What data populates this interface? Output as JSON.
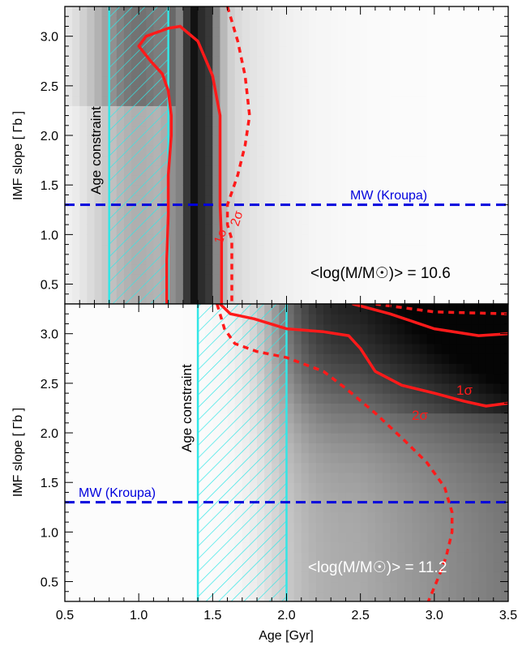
{
  "chart_data": [
    {
      "type": "heatmap",
      "panel": "top",
      "xlabel": "",
      "ylabel": "IMF slope [ Γb ]",
      "xlim": [
        0.5,
        3.5
      ],
      "ylim": [
        0.3,
        3.3
      ],
      "x_ticks": [
        "0.5",
        "1.0",
        "1.5",
        "2.0",
        "2.5",
        "3.0",
        "3.5"
      ],
      "y_ticks": [
        "0.5",
        "1.0",
        "1.5",
        "2.0",
        "2.5",
        "3.0"
      ],
      "age_constraint": {
        "label": "Age constraint",
        "x": [
          0.8,
          1.2
        ]
      },
      "mw_line": {
        "label": "MW (Kroupa)",
        "y": 1.3
      },
      "mass_label": "<log(M/M☉)> = 10.6",
      "contours": [
        {
          "label": "1σ",
          "style": "solid",
          "points": [
            [
              1.28,
              3.1
            ],
            [
              1.2,
              3.08
            ],
            [
              1.05,
              3.0
            ],
            [
              1.0,
              2.9
            ],
            [
              1.08,
              2.75
            ],
            [
              1.16,
              2.62
            ],
            [
              1.2,
              2.45
            ],
            [
              1.22,
              2.2
            ],
            [
              1.22,
              2.0
            ],
            [
              1.2,
              1.6
            ],
            [
              1.2,
              1.2
            ],
            [
              1.19,
              0.75
            ],
            [
              1.19,
              0.3
            ]
          ],
          "points_b": [
            [
              1.28,
              3.1
            ],
            [
              1.4,
              2.95
            ],
            [
              1.5,
              2.6
            ],
            [
              1.55,
              2.2
            ],
            [
              1.55,
              1.9
            ],
            [
              1.55,
              1.3
            ],
            [
              1.56,
              0.95
            ],
            [
              1.56,
              0.3
            ]
          ]
        },
        {
          "label": "2σ",
          "style": "dashed",
          "points": [
            [
              1.6,
              3.3
            ],
            [
              1.67,
              2.95
            ],
            [
              1.72,
              2.6
            ],
            [
              1.75,
              2.2
            ],
            [
              1.72,
              1.9
            ],
            [
              1.67,
              1.6
            ],
            [
              1.6,
              1.3
            ],
            [
              1.6,
              1.1
            ],
            [
              1.63,
              0.95
            ],
            [
              1.63,
              0.3
            ]
          ]
        }
      ]
    },
    {
      "type": "heatmap",
      "panel": "bottom",
      "xlabel": "Age [Gyr]",
      "ylabel": "IMF slope [ Γb ]",
      "xlim": [
        0.5,
        3.5
      ],
      "ylim": [
        0.3,
        3.3
      ],
      "x_ticks": [
        "0.5",
        "1.0",
        "1.5",
        "2.0",
        "2.5",
        "3.0",
        "3.5"
      ],
      "y_ticks": [
        "0.5",
        "1.0",
        "1.5",
        "2.0",
        "2.5",
        "3.0"
      ],
      "age_constraint": {
        "label": "Age constraint",
        "x": [
          1.4,
          2.0
        ]
      },
      "mw_line": {
        "label": "MW (Kroupa)",
        "y": 1.3
      },
      "mass_label": "<log(M/M☉)> = 11.2",
      "contours": [
        {
          "label": "1σ",
          "style": "solid",
          "points": [
            [
              1.55,
              3.3
            ],
            [
              1.62,
              3.2
            ],
            [
              1.78,
              3.15
            ],
            [
              2.0,
              3.05
            ],
            [
              2.25,
              3.02
            ],
            [
              2.42,
              2.98
            ],
            [
              2.5,
              2.85
            ],
            [
              2.6,
              2.62
            ],
            [
              2.78,
              2.48
            ],
            [
              3.0,
              2.4
            ],
            [
              3.2,
              2.32
            ],
            [
              3.35,
              2.27
            ],
            [
              3.5,
              2.3
            ]
          ]
        },
        {
          "label": "",
          "style": "solid",
          "points": [
            [
              2.45,
              3.3
            ],
            [
              2.7,
              3.2
            ],
            [
              3.0,
              3.05
            ],
            [
              3.3,
              2.98
            ],
            [
              3.5,
              3.0
            ]
          ]
        },
        {
          "label": "2σ",
          "style": "dashed",
          "points": [
            [
              1.53,
              3.3
            ],
            [
              1.58,
              3.05
            ],
            [
              1.65,
              2.9
            ],
            [
              1.8,
              2.82
            ],
            [
              2.0,
              2.76
            ],
            [
              2.25,
              2.62
            ],
            [
              2.4,
              2.45
            ],
            [
              2.6,
              2.2
            ],
            [
              2.8,
              1.92
            ],
            [
              2.95,
              1.7
            ],
            [
              3.07,
              1.45
            ],
            [
              3.12,
              1.2
            ],
            [
              3.12,
              1.0
            ],
            [
              3.08,
              0.75
            ],
            [
              3.03,
              0.55
            ],
            [
              2.96,
              0.3
            ]
          ]
        },
        {
          "label": "",
          "style": "dashed",
          "points": [
            [
              2.6,
              3.3
            ],
            [
              3.0,
              3.22
            ],
            [
              3.5,
              3.2
            ]
          ]
        }
      ]
    }
  ],
  "colors": {
    "contour": "#ff1a1a",
    "mw_line": "#0000dd",
    "age_band": "#33e6e6"
  }
}
